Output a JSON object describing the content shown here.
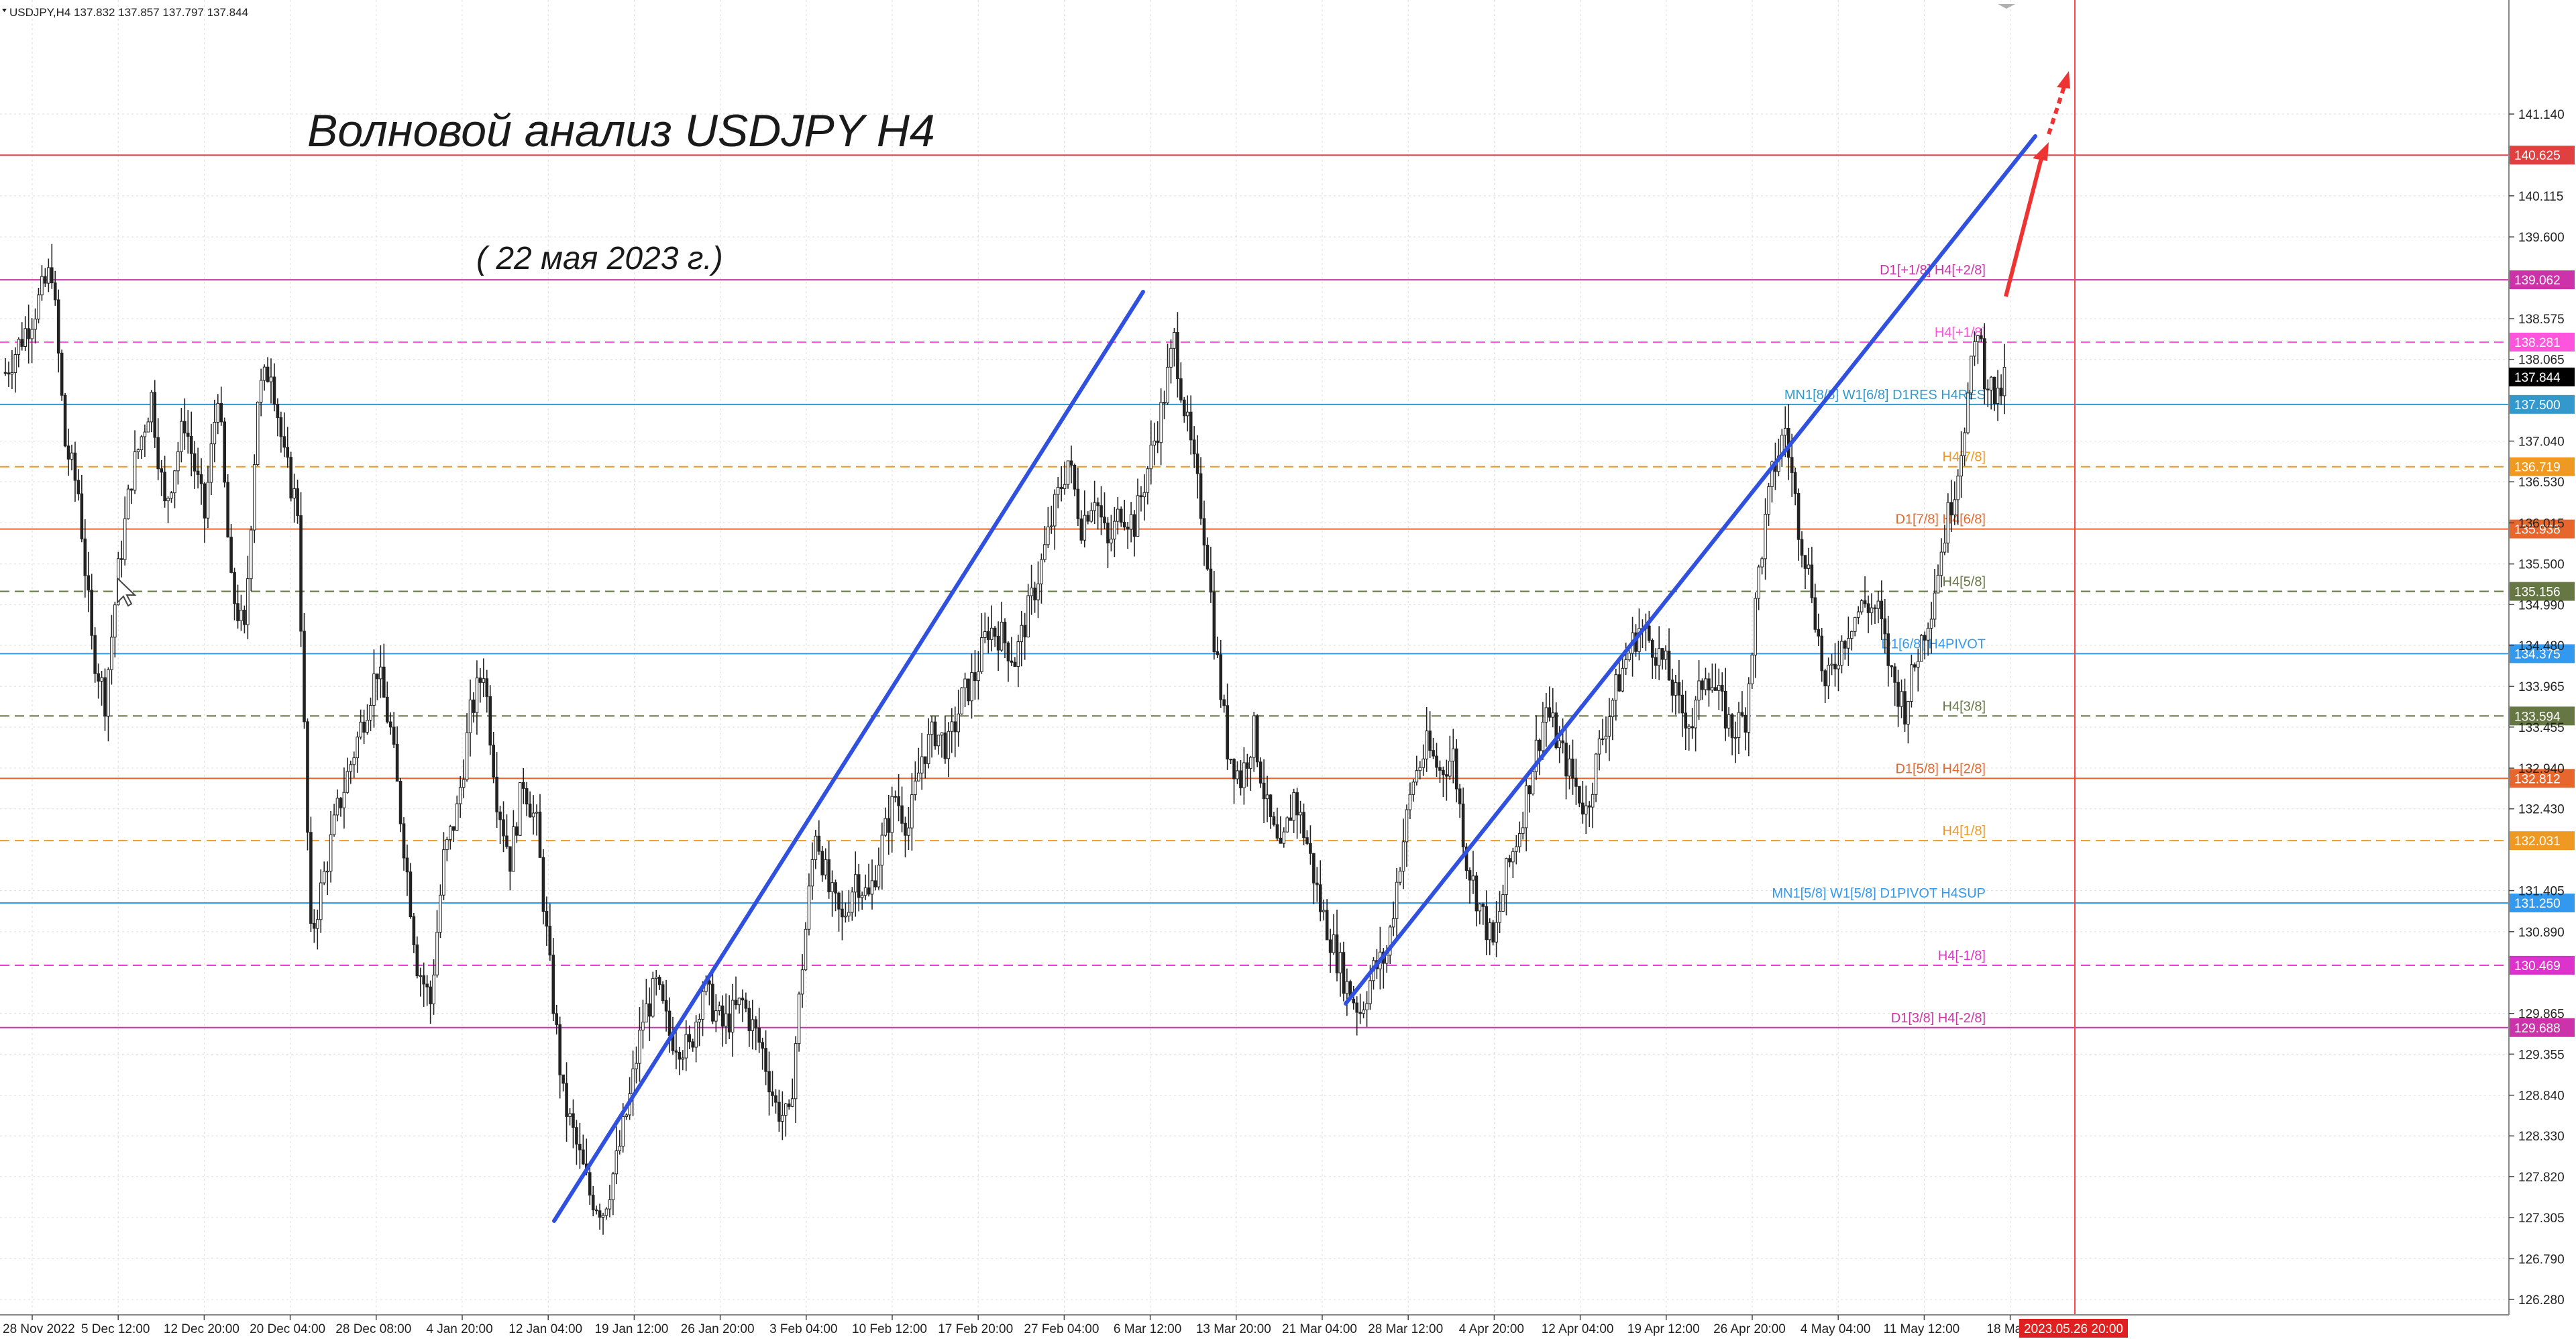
{
  "header": {
    "symbol_line": "USDJPY,H4  137.832 137.857 137.797 137.844"
  },
  "annotations": {
    "title": "Волновой анализ USDJPY H4",
    "date": "( 22 мая 2023 г.)"
  },
  "chart_data": {
    "type": "candlestick",
    "symbol": "USDJPY",
    "timeframe": "H4",
    "ohlc_current": {
      "open": 137.832,
      "high": 137.857,
      "low": 137.797,
      "close": 137.844
    },
    "ylim": [
      125.9,
      141.35
    ],
    "y_ticks": [
      141.14,
      140.115,
      139.6,
      138.575,
      138.065,
      137.04,
      136.53,
      136.015,
      135.5,
      134.99,
      134.48,
      133.965,
      133.455,
      132.94,
      132.43,
      131.405,
      130.89,
      129.865,
      129.355,
      128.84,
      128.33,
      127.82,
      127.305,
      126.79,
      126.28
    ],
    "x_tick_labels": [
      "28 Nov 2022",
      "5 Dec 12:00",
      "12 Dec 20:00",
      "20 Dec 04:00",
      "28 Dec 08:00",
      "4 Jan 20:00",
      "12 Jan 04:00",
      "19 Jan 12:00",
      "26 Jan 20:00",
      "3 Feb 04:00",
      "10 Feb 12:00",
      "17 Feb 20:00",
      "27 Feb 04:00",
      "6 Mar 12:00",
      "13 Mar 20:00",
      "21 Mar 04:00",
      "28 Mar 12:00",
      "4 Apr 20:00",
      "12 Apr 04:00",
      "19 Apr 12:00",
      "26 Apr 20:00",
      "4 May 04:00",
      "11 May 12:00",
      "18 May"
    ],
    "current_time_label": "2023.05.26 20:00",
    "current_price": {
      "value": 137.844,
      "label": "137.844"
    },
    "price_path": [
      [
        0,
        137.9
      ],
      [
        8,
        138.6
      ],
      [
        14,
        139.2
      ],
      [
        18,
        137.0
      ],
      [
        22,
        136.4
      ],
      [
        26,
        134.5
      ],
      [
        30,
        133.8
      ],
      [
        34,
        135.4
      ],
      [
        38,
        136.6
      ],
      [
        44,
        137.6
      ],
      [
        48,
        136.2
      ],
      [
        54,
        137.3
      ],
      [
        60,
        136.1
      ],
      [
        64,
        137.7
      ],
      [
        68,
        135.2
      ],
      [
        72,
        134.6
      ],
      [
        76,
        137.6
      ],
      [
        80,
        138.0
      ],
      [
        84,
        136.8
      ],
      [
        88,
        136.2
      ],
      [
        90,
        133.4
      ],
      [
        92,
        130.8
      ],
      [
        96,
        131.6
      ],
      [
        100,
        132.4
      ],
      [
        104,
        133.0
      ],
      [
        108,
        133.6
      ],
      [
        112,
        134.2
      ],
      [
        116,
        133.4
      ],
      [
        120,
        132.0
      ],
      [
        124,
        130.5
      ],
      [
        128,
        130.0
      ],
      [
        132,
        131.8
      ],
      [
        136,
        132.4
      ],
      [
        140,
        133.6
      ],
      [
        144,
        134.2
      ],
      [
        148,
        132.6
      ],
      [
        152,
        131.8
      ],
      [
        156,
        132.8
      ],
      [
        160,
        132.2
      ],
      [
        164,
        130.4
      ],
      [
        168,
        128.8
      ],
      [
        172,
        128.2
      ],
      [
        176,
        127.6
      ],
      [
        180,
        127.4
      ],
      [
        184,
        128.0
      ],
      [
        188,
        128.8
      ],
      [
        192,
        129.8
      ],
      [
        196,
        130.2
      ],
      [
        200,
        129.6
      ],
      [
        206,
        129.4
      ],
      [
        210,
        130.2
      ],
      [
        216,
        129.7
      ],
      [
        222,
        130.0
      ],
      [
        228,
        129.4
      ],
      [
        232,
        128.7
      ],
      [
        236,
        128.5
      ],
      [
        240,
        130.5
      ],
      [
        244,
        132.2
      ],
      [
        248,
        131.4
      ],
      [
        252,
        131.0
      ],
      [
        256,
        131.6
      ],
      [
        260,
        131.3
      ],
      [
        264,
        132.0
      ],
      [
        268,
        132.6
      ],
      [
        272,
        132.2
      ],
      [
        276,
        133.1
      ],
      [
        280,
        133.4
      ],
      [
        284,
        133.2
      ],
      [
        288,
        133.8
      ],
      [
        292,
        134.1
      ],
      [
        296,
        134.7
      ],
      [
        300,
        134.6
      ],
      [
        304,
        134.3
      ],
      [
        308,
        134.9
      ],
      [
        312,
        135.5
      ],
      [
        316,
        136.2
      ],
      [
        320,
        136.8
      ],
      [
        324,
        136.0
      ],
      [
        328,
        136.4
      ],
      [
        332,
        135.7
      ],
      [
        336,
        136.2
      ],
      [
        340,
        136.0
      ],
      [
        344,
        136.7
      ],
      [
        348,
        137.4
      ],
      [
        352,
        138.3
      ],
      [
        356,
        137.2
      ],
      [
        360,
        136.2
      ],
      [
        362,
        135.6
      ],
      [
        364,
        134.6
      ],
      [
        368,
        133.2
      ],
      [
        372,
        132.8
      ],
      [
        376,
        133.4
      ],
      [
        380,
        132.4
      ],
      [
        384,
        131.8
      ],
      [
        388,
        132.6
      ],
      [
        392,
        132.0
      ],
      [
        396,
        131.2
      ],
      [
        400,
        130.7
      ],
      [
        404,
        130.2
      ],
      [
        408,
        129.9
      ],
      [
        412,
        130.4
      ],
      [
        416,
        130.6
      ],
      [
        420,
        131.8
      ],
      [
        424,
        132.8
      ],
      [
        428,
        133.2
      ],
      [
        432,
        132.9
      ],
      [
        436,
        133.1
      ],
      [
        440,
        131.8
      ],
      [
        444,
        131.2
      ],
      [
        448,
        130.7
      ],
      [
        452,
        131.6
      ],
      [
        456,
        132.2
      ],
      [
        460,
        133.0
      ],
      [
        464,
        133.7
      ],
      [
        468,
        133.2
      ],
      [
        472,
        132.8
      ],
      [
        476,
        132.4
      ],
      [
        480,
        133.2
      ],
      [
        484,
        133.8
      ],
      [
        488,
        134.3
      ],
      [
        492,
        134.7
      ],
      [
        496,
        134.5
      ],
      [
        500,
        134.2
      ],
      [
        504,
        133.7
      ],
      [
        508,
        133.5
      ],
      [
        512,
        134.2
      ],
      [
        516,
        133.8
      ],
      [
        520,
        133.4
      ],
      [
        524,
        133.6
      ],
      [
        528,
        135.4
      ],
      [
        532,
        136.6
      ],
      [
        536,
        137.2
      ],
      [
        540,
        136.0
      ],
      [
        544,
        135.2
      ],
      [
        548,
        133.9
      ],
      [
        552,
        134.4
      ],
      [
        556,
        134.8
      ],
      [
        560,
        135.0
      ],
      [
        564,
        134.9
      ],
      [
        568,
        134.1
      ],
      [
        572,
        133.7
      ],
      [
        576,
        134.4
      ],
      [
        580,
        135.0
      ],
      [
        584,
        135.9
      ],
      [
        588,
        136.7
      ],
      [
        592,
        137.9
      ],
      [
        594,
        138.5
      ],
      [
        596,
        137.9
      ],
      [
        600,
        137.5
      ],
      [
        602,
        137.84
      ]
    ]
  },
  "levels": [
    {
      "price": 140.625,
      "label": "",
      "tag": "140.625",
      "color": "#e04040",
      "dash": false
    },
    {
      "price": 139.062,
      "label": "D1[+1/8] H4[+2/8]",
      "tag": "139.062",
      "color": "#cc33aa",
      "dash": false
    },
    {
      "price": 138.281,
      "label": "H4[+1/8]",
      "tag": "138.281",
      "color": "#ff55dd",
      "dash": true
    },
    {
      "price": 137.5,
      "label": "MN1[8/8] W1[6/8] D1RES H4RES",
      "tag": "137.500",
      "color": "#3399cc",
      "dash": false
    },
    {
      "price": 136.719,
      "label": "H4[7/8]",
      "tag": "136.719",
      "color": "#ee9922",
      "dash": true
    },
    {
      "price": 135.938,
      "label": "D1[7/8] H4[6/8]",
      "tag": "135.938",
      "color": "#e8652b",
      "dash": false
    },
    {
      "price": 135.156,
      "label": "H4[5/8]",
      "tag": "135.156",
      "color": "#667744",
      "dash": true
    },
    {
      "price": 134.375,
      "label": "D1[6/8] H4PIVOT",
      "tag": "134.375",
      "color": "#3399ee",
      "dash": false
    },
    {
      "price": 133.594,
      "label": "H4[3/8]",
      "tag": "133.594",
      "color": "#667744",
      "dash": true
    },
    {
      "price": 132.812,
      "label": "D1[5/8] H4[2/8]",
      "tag": "132.812",
      "color": "#e8652b",
      "dash": false
    },
    {
      "price": 132.031,
      "label": "H4[1/8]",
      "tag": "132.031",
      "color": "#ee9922",
      "dash": true
    },
    {
      "price": 131.25,
      "label": "MN1[5/8] W1[5/8] D1PIVOT H4SUP",
      "tag": "131.250",
      "color": "#3399ee",
      "dash": false
    },
    {
      "price": 130.469,
      "label": "H4[-1/8]",
      "tag": "130.469",
      "color": "#dd33cc",
      "dash": true
    },
    {
      "price": 129.688,
      "label": "D1[3/8] H4[-2/8]",
      "tag": "129.688",
      "color": "#cc33aa",
      "dash": false
    }
  ],
  "colors": {
    "candles": "#222222",
    "grid": "#dcdcdc",
    "trend_lines": "#3050e0",
    "arrow": "#ee3333",
    "current_tag_bg": "#000000",
    "time_tag_bg": "#e02020"
  }
}
